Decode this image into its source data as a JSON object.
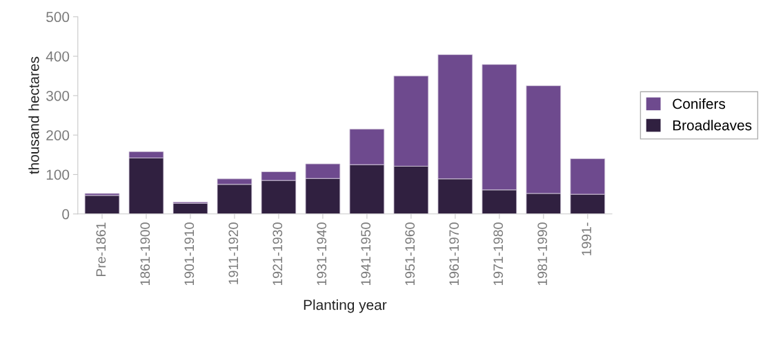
{
  "chart_data": {
    "type": "bar",
    "stacked": true,
    "xlabel": "Planting year",
    "ylabel": "thousand hectares",
    "categories": [
      "Pre-1861",
      "1861-1900",
      "1901-1910",
      "1911-1920",
      "1921-1930",
      "1931-1940",
      "1941-1950",
      "1951-1960",
      "1961-1970",
      "1971-1980",
      "1981-1990",
      "1991-"
    ],
    "series": [
      {
        "name": "Broadleaves",
        "color": "#302040",
        "values": [
          47,
          142,
          27,
          75,
          85,
          90,
          125,
          121,
          89,
          61,
          52,
          50
        ]
      },
      {
        "name": "Conifers",
        "color": "#6e4a8e",
        "values": [
          5,
          16,
          3,
          14,
          22,
          37,
          90,
          229,
          315,
          318,
          273,
          90
        ]
      }
    ],
    "ylim": [
      0,
      500
    ],
    "yticks": [
      0,
      100,
      200,
      300,
      400,
      500
    ],
    "grid": false,
    "legend": "right"
  }
}
